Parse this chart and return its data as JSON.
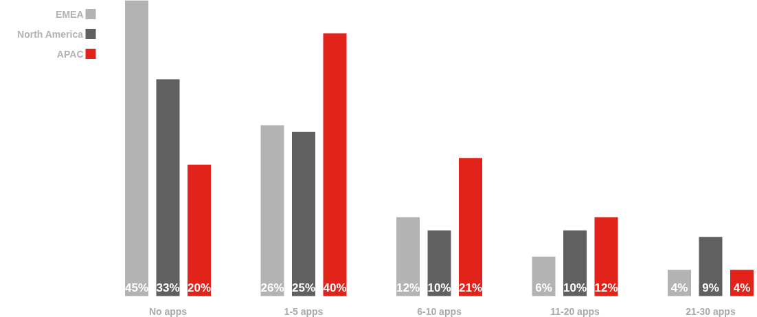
{
  "chart_data": {
    "type": "bar",
    "categories": [
      "No apps",
      "1-5 apps",
      "6-10 apps",
      "11-20 apps",
      "21-30 apps"
    ],
    "series": [
      {
        "name": "EMEA",
        "color": "#b3b3b3",
        "values": [
          45,
          26,
          12,
          6,
          4
        ],
        "value_labels": [
          "45%",
          "26%",
          "12%",
          "6%",
          "4%"
        ]
      },
      {
        "name": "North America",
        "color": "#606060",
        "values": [
          33,
          25,
          10,
          10,
          9
        ],
        "value_labels": [
          "33%",
          "25%",
          "10%",
          "10%",
          "9%"
        ]
      },
      {
        "name": "APAC",
        "color": "#e2231a",
        "values": [
          20,
          40,
          21,
          12,
          4
        ],
        "value_labels": [
          "20%",
          "40%",
          "21%",
          "12%",
          "4%"
        ]
      }
    ],
    "legend": "top left",
    "grid": false
  }
}
